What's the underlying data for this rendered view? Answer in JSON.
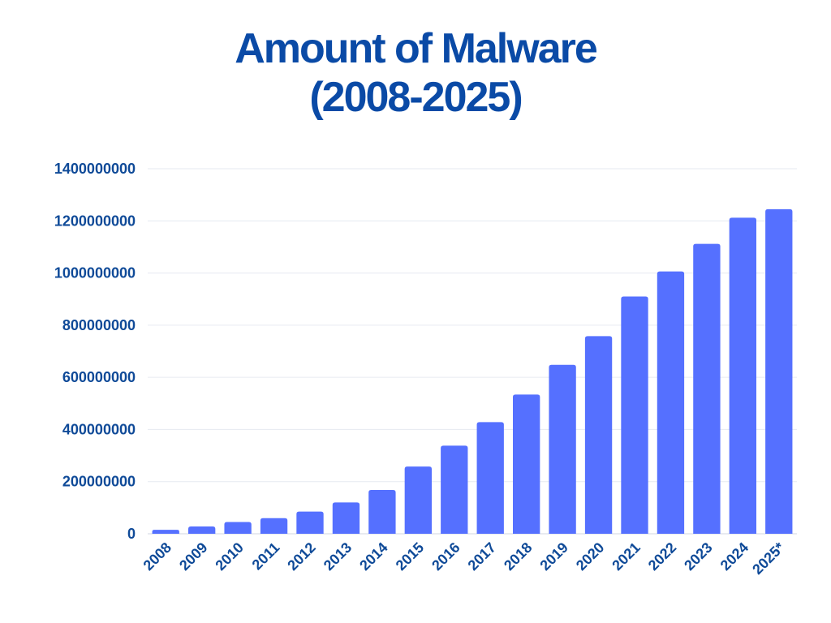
{
  "chart_data": {
    "type": "bar",
    "title": "Amount of Malware",
    "subtitle": "(2008-2025)",
    "xlabel": "",
    "ylabel": "",
    "categories": [
      "2008",
      "2009",
      "2010",
      "2011",
      "2012",
      "2013",
      "2014",
      "2015",
      "2016",
      "2017",
      "2018",
      "2019",
      "2020",
      "2021",
      "2022",
      "2023",
      "2024",
      "2025*"
    ],
    "values": [
      15000000,
      28000000,
      45000000,
      60000000,
      85000000,
      120000000,
      168000000,
      258000000,
      338000000,
      428000000,
      534000000,
      648000000,
      758000000,
      910000000,
      1006000000,
      1112000000,
      1212000000,
      1245000000
    ],
    "ylim": [
      0,
      1400000000
    ],
    "yticks": [
      "0",
      "200000000",
      "400000000",
      "600000000",
      "800000000",
      "1000000000",
      "1200000000",
      "1400000000"
    ],
    "grid": true,
    "bar_color": "#5570ff",
    "text_color": "#0f4a98",
    "title_color": "#0a4aa6"
  }
}
